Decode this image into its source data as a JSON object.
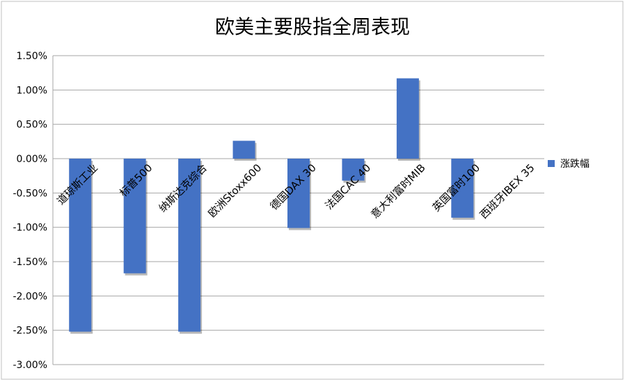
{
  "chart_data": {
    "type": "bar",
    "title": "欧美主要股指全周表现",
    "categories": [
      "道琼斯工业",
      "标普500",
      "纳斯达克综合",
      "欧洲Stoxx600",
      "德国DAX 30",
      "法国CAC 40",
      "意大利富时MIB",
      "英国富时100",
      "西班牙IBEX 35"
    ],
    "series": [
      {
        "name": "涨跌幅",
        "values": [
          -2.52,
          -1.67,
          -2.52,
          0.26,
          -1.01,
          -0.32,
          1.17,
          -0.86,
          0.0
        ],
        "color": "#4472C4"
      }
    ],
    "y_ticks": [
      "1.50%",
      "1.00%",
      "0.50%",
      "0.00%",
      "-0.50%",
      "-1.00%",
      "-1.50%",
      "-2.00%",
      "-2.50%",
      "-3.00%"
    ],
    "ylim": [
      -3.0,
      1.5
    ],
    "xlabel": "",
    "ylabel": "",
    "grid": true,
    "legend_position": "right"
  }
}
